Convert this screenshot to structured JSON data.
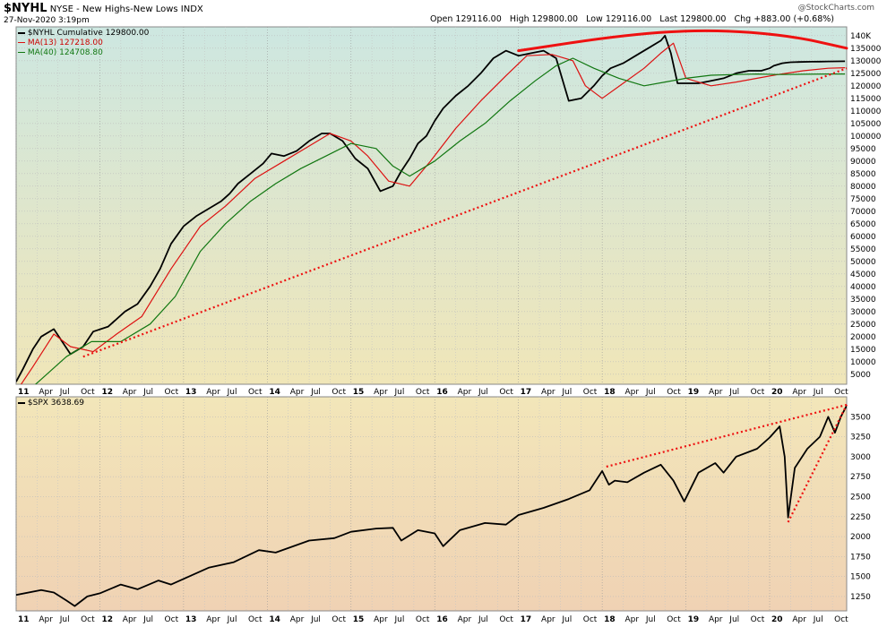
{
  "header": {
    "symbol": "$NYHL",
    "description": "NYSE - New Highs-New Lows INDX",
    "date": "27-Nov-2020 3:19pm",
    "ohlc": "Open 129116.00   High 129800.00   Low 129116.00   Last 129800.00   Chg +883.00 (+0.68%)",
    "watermark": "@StockCharts.com"
  },
  "legend_top": {
    "series1": "$NYHL Cumulative 129800.00",
    "series2": "MA(13) 127218.00",
    "series3": "MA(40) 124708.80"
  },
  "legend_bottom": {
    "series1": "$SPX 3638.69"
  },
  "colors": {
    "price": "#000000",
    "ma13": "#dd1111",
    "ma40": "#117711",
    "trend": "#ee1111",
    "top_bg_top": "#cde7e1",
    "top_bg_bottom": "#f0e6b8",
    "bottom_bg_top": "#f2e6b9",
    "bottom_bg_bottom": "#f0d2b4"
  },
  "x_axis": {
    "labels": [
      "11",
      "Apr",
      "Jul",
      "Oct",
      "12",
      "Apr",
      "Jul",
      "Oct",
      "13",
      "Apr",
      "Jul",
      "Oct",
      "14",
      "Apr",
      "Jul",
      "Oct",
      "15",
      "Apr",
      "Jul",
      "Oct",
      "16",
      "Apr",
      "Jul",
      "Oct",
      "17",
      "Apr",
      "Jul",
      "Oct",
      "18",
      "Apr",
      "Jul",
      "Oct",
      "19",
      "Apr",
      "Jul",
      "Oct",
      "20",
      "Apr",
      "Jul",
      "Oct"
    ]
  },
  "chart_data": [
    {
      "type": "line",
      "panel": "top",
      "xlim": [
        2011.0,
        2020.92
      ],
      "ylim": [
        1000,
        143500
      ],
      "y_ticks": [
        5000,
        10000,
        15000,
        20000,
        25000,
        30000,
        35000,
        40000,
        45000,
        50000,
        55000,
        60000,
        65000,
        70000,
        75000,
        80000,
        85000,
        90000,
        95000,
        100000,
        105000,
        110000,
        115000,
        120000,
        125000,
        130000,
        135000,
        140000
      ],
      "y_tick_labels": [
        "5000",
        "10000",
        "15000",
        "20000",
        "25000",
        "30000",
        "35000",
        "40000",
        "45000",
        "50000",
        "55000",
        "60000",
        "65000",
        "70000",
        "75000",
        "80000",
        "85000",
        "90000",
        "95000",
        "100000",
        "105000",
        "110000",
        "115000",
        "120000",
        "125000",
        "130000",
        "135000",
        "140K"
      ],
      "series": [
        {
          "name": "$NYHL Cumulative",
          "role": "price",
          "x": [
            2011.0,
            2011.08,
            2011.2,
            2011.3,
            2011.45,
            2011.55,
            2011.65,
            2011.8,
            2011.92,
            2012.1,
            2012.3,
            2012.45,
            2012.6,
            2012.72,
            2012.85,
            2013.0,
            2013.15,
            2013.3,
            2013.45,
            2013.55,
            2013.65,
            2013.8,
            2013.95,
            2014.05,
            2014.2,
            2014.35,
            2014.5,
            2014.65,
            2014.75,
            2014.9,
            2015.05,
            2015.2,
            2015.35,
            2015.5,
            2015.6,
            2015.7,
            2015.8,
            2015.9,
            2016.0,
            2016.1,
            2016.25,
            2016.4,
            2016.55,
            2016.7,
            2016.85,
            2017.0,
            2017.15,
            2017.3,
            2017.45,
            2017.6,
            2017.75,
            2017.9,
            2018.0,
            2018.1,
            2018.25,
            2018.4,
            2018.55,
            2018.7,
            2018.75,
            2018.82,
            2018.9,
            2019.0,
            2019.15,
            2019.3,
            2019.45,
            2019.6,
            2019.75,
            2019.9,
            2020.0,
            2020.05,
            2020.1,
            2020.15,
            2020.2,
            2020.25,
            2020.35,
            2020.5,
            2020.6,
            2020.7,
            2020.8,
            2020.9
          ],
          "y": [
            2000,
            7000,
            15000,
            20000,
            23000,
            18000,
            13000,
            16000,
            22000,
            24000,
            30000,
            33000,
            40000,
            47000,
            57000,
            64000,
            68000,
            71000,
            74000,
            77000,
            81000,
            85000,
            89000,
            93000,
            92000,
            94000,
            98000,
            101000,
            101000,
            98000,
            91000,
            87000,
            78000,
            80000,
            86000,
            91000,
            97000,
            100000,
            106000,
            111000,
            116000,
            120000,
            125000,
            131000,
            134000,
            132000,
            133000,
            134000,
            131000,
            114000,
            115000,
            120000,
            124000,
            127000,
            129000,
            132000,
            135000,
            138000,
            140000,
            133000,
            121000,
            121000,
            121000,
            122000,
            123000,
            125000,
            126000,
            126000,
            127000,
            128000,
            128500,
            129000,
            129200,
            129400,
            129500,
            129600,
            129650,
            129700,
            129750,
            129800
          ]
        },
        {
          "name": "MA(13)",
          "role": "ma13",
          "x": [
            2011.0,
            2011.2,
            2011.45,
            2011.65,
            2011.92,
            2012.2,
            2012.5,
            2012.85,
            2013.2,
            2013.5,
            2013.85,
            2014.2,
            2014.5,
            2014.75,
            2015.0,
            2015.2,
            2015.45,
            2015.7,
            2015.95,
            2016.25,
            2016.55,
            2016.85,
            2017.1,
            2017.4,
            2017.65,
            2017.8,
            2018.0,
            2018.25,
            2018.5,
            2018.7,
            2018.85,
            2019.0,
            2019.3,
            2019.6,
            2019.85,
            2020.1,
            2020.4,
            2020.7,
            2020.9
          ],
          "y": [
            -2000,
            8000,
            21000,
            16000,
            14000,
            21000,
            28000,
            47000,
            64000,
            72000,
            83000,
            90000,
            96000,
            101000,
            98000,
            92000,
            82000,
            80000,
            90000,
            103000,
            114000,
            124000,
            132000,
            132500,
            130000,
            120000,
            115000,
            121000,
            127000,
            133000,
            137000,
            123000,
            120000,
            121500,
            123000,
            124500,
            126000,
            127000,
            127218
          ]
        },
        {
          "name": "MA(40)",
          "role": "ma40",
          "x": [
            2011.0,
            2011.3,
            2011.6,
            2011.9,
            2012.25,
            2012.6,
            2012.9,
            2013.2,
            2013.5,
            2013.8,
            2014.1,
            2014.4,
            2014.7,
            2015.0,
            2015.3,
            2015.5,
            2015.7,
            2016.0,
            2016.3,
            2016.6,
            2016.9,
            2017.2,
            2017.45,
            2017.65,
            2017.9,
            2018.2,
            2018.5,
            2018.75,
            2019.0,
            2019.3,
            2019.6,
            2019.85,
            2020.1,
            2020.4,
            2020.7,
            2020.9
          ],
          "y": [
            -6000,
            3000,
            12000,
            18000,
            18000,
            25000,
            36000,
            54000,
            65000,
            74000,
            81000,
            87000,
            92000,
            97000,
            95000,
            88000,
            84000,
            90000,
            98000,
            105000,
            114000,
            122000,
            128000,
            131000,
            127000,
            123000,
            120000,
            121500,
            123000,
            124200,
            124500,
            124700,
            124500,
            124600,
            124700,
            124708.8
          ]
        },
        {
          "name": "",
          "role": "trend",
          "x": [
            2011.8,
            2020.92
          ],
          "y": [
            12000,
            127000
          ]
        }
      ],
      "arc": {
        "role": "trend",
        "x": [
          2017.0,
          2018.3,
          2019.3,
          2020.25,
          2020.92
        ],
        "y": [
          134000,
          140500,
          142500,
          140000,
          135000
        ]
      }
    },
    {
      "type": "line",
      "panel": "bottom",
      "xlim": [
        2011.0,
        2020.92
      ],
      "ylim": [
        1070,
        3750
      ],
      "y_ticks": [
        1250,
        1500,
        1750,
        2000,
        2250,
        2500,
        2750,
        3000,
        3250,
        3500
      ],
      "y_tick_labels": [
        "1250",
        "1500",
        "1750",
        "2000",
        "2250",
        "2500",
        "2750",
        "3000",
        "3250",
        "3500"
      ],
      "series": [
        {
          "name": "$SPX",
          "role": "price",
          "x": [
            2011.0,
            2011.3,
            2011.45,
            2011.6,
            2011.7,
            2011.85,
            2012.0,
            2012.25,
            2012.45,
            2012.7,
            2012.85,
            2013.0,
            2013.3,
            2013.6,
            2013.9,
            2014.1,
            2014.5,
            2014.8,
            2015.0,
            2015.3,
            2015.5,
            2015.6,
            2015.8,
            2016.0,
            2016.1,
            2016.3,
            2016.6,
            2016.85,
            2017.0,
            2017.3,
            2017.6,
            2017.85,
            2018.0,
            2018.08,
            2018.15,
            2018.3,
            2018.5,
            2018.7,
            2018.85,
            2018.98,
            2019.15,
            2019.35,
            2019.45,
            2019.6,
            2019.85,
            2020.0,
            2020.12,
            2020.18,
            2020.22,
            2020.3,
            2020.45,
            2020.6,
            2020.7,
            2020.78,
            2020.85,
            2020.92
          ],
          "y": [
            1270,
            1330,
            1300,
            1200,
            1130,
            1250,
            1290,
            1400,
            1340,
            1450,
            1400,
            1470,
            1610,
            1680,
            1830,
            1800,
            1950,
            1980,
            2060,
            2100,
            2110,
            1950,
            2080,
            2040,
            1880,
            2080,
            2170,
            2150,
            2270,
            2360,
            2470,
            2580,
            2820,
            2650,
            2700,
            2680,
            2800,
            2900,
            2700,
            2440,
            2800,
            2920,
            2800,
            3000,
            3100,
            3240,
            3380,
            3000,
            2240,
            2860,
            3100,
            3250,
            3500,
            3300,
            3500,
            3638.69
          ]
        },
        {
          "name": "",
          "role": "trend",
          "x": [
            2018.05,
            2020.92
          ],
          "y": [
            2875,
            3650
          ]
        },
        {
          "name": "",
          "role": "trend",
          "x": [
            2020.22,
            2020.92
          ],
          "y": [
            2180,
            3650
          ]
        }
      ]
    }
  ]
}
